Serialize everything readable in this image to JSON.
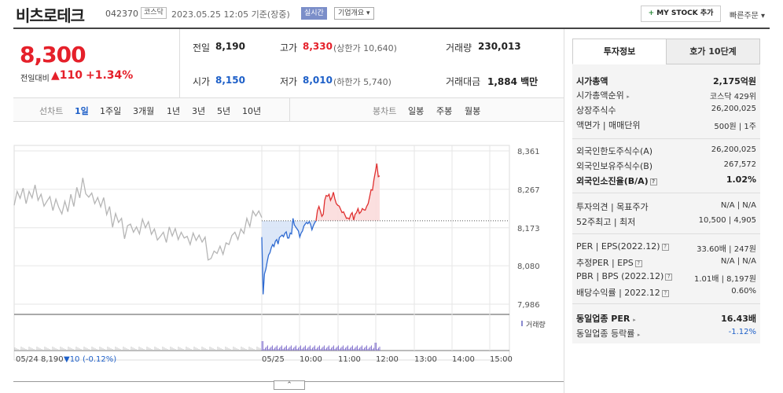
{
  "header": {
    "stock_name": "비츠로테크",
    "stock_code": "042370",
    "market": "코스닥",
    "datetime": "2023.05.25 12:05 기준(장중)",
    "realtime": "실시간",
    "company_overview": "기업개요 ▾",
    "mystock_plus": "+",
    "mystock_label": "MY STOCK 추가",
    "quick_order": "빠른주문 ▾"
  },
  "price": {
    "current": "8,300",
    "change_label": "전일대비",
    "change": "▲110",
    "change_pct": "+1.34%"
  },
  "quote": {
    "prev_close_label": "전일",
    "prev_close": "8,190",
    "high_label": "고가",
    "high": "8,330",
    "upper_limit": "(상한가 10,640)",
    "volume_label": "거래량",
    "volume": "230,013",
    "open_label": "시가",
    "open": "8,150",
    "low_label": "저가",
    "low": "8,010",
    "lower_limit": "(하한가 5,740)",
    "amount_label": "거래대금",
    "amount": "1,884 백만"
  },
  "chart_tabs": {
    "line_label": "선차트",
    "periods": [
      "1일",
      "1주일",
      "3개월",
      "1년",
      "3년",
      "5년",
      "10년"
    ],
    "active": "1일",
    "candle_label": "봉차트",
    "candles": [
      "일봉",
      "주봉",
      "월봉"
    ]
  },
  "chart_data": {
    "type": "line",
    "x_ticks": [
      "05/25",
      "10:00",
      "11:00",
      "12:00",
      "13:00",
      "14:00",
      "15:00"
    ],
    "y_ticks": [
      "8,361",
      "8,267",
      "8,173",
      "8,080",
      "7,986"
    ],
    "ylim": [
      7986,
      8361
    ],
    "reference_price": 8190,
    "series": [
      {
        "color": "#b5b5b5",
        "values": [
          8228,
          8262,
          8245,
          8270,
          8232,
          8262,
          8246,
          8278,
          8240,
          8255,
          8226,
          8238,
          8249,
          8215,
          8243,
          8222,
          8207,
          8238,
          8212,
          8255,
          8225,
          8272,
          8246,
          8295,
          8256,
          8248,
          8258,
          8232,
          8247,
          8224,
          8247,
          8205,
          8225,
          8174,
          8208,
          8186,
          8196,
          8146,
          8178,
          8182,
          8162,
          8175,
          8158,
          8194,
          8173,
          8188,
          8157,
          8170,
          8143,
          8152,
          8162,
          8137,
          8175,
          8153,
          8171,
          8144,
          8162,
          8148,
          8152,
          8132,
          8160,
          8142,
          8155,
          8138,
          8150,
          8094,
          8098,
          8116,
          8110,
          8128,
          8108,
          8136,
          8132,
          8154,
          8162,
          8144,
          8170,
          8159,
          8196,
          8176,
          8214,
          8202,
          8214,
          8198
        ]
      },
      {
        "color": "#2e6ad1",
        "fill": "#d8e4f7",
        "values": [
          8150,
          8010,
          8060,
          8072,
          8090,
          8106,
          8112,
          8124,
          8132,
          8127,
          8140,
          8144,
          8133,
          8149,
          8152,
          8155,
          8151,
          8159,
          8163,
          8148,
          8148,
          8160,
          8158,
          8196,
          8180,
          8175,
          8170,
          8165,
          8150,
          8160,
          8165,
          8177,
          8182,
          8186,
          8183,
          8188,
          8181,
          8168,
          8178,
          8185,
          8190
        ]
      },
      {
        "color": "#e03030",
        "fill": "#fbdcdc",
        "values": [
          8190,
          8215,
          8225,
          8214,
          8201,
          8206,
          8240,
          8252,
          8250,
          8255,
          8240,
          8248,
          8260,
          8244,
          8232,
          8228,
          8226,
          8218,
          8210,
          8212,
          8204,
          8196,
          8197,
          8194,
          8205,
          8210,
          8192,
          8206,
          8210,
          8220,
          8208,
          8212,
          8220,
          8217,
          8216,
          8225,
          8232,
          8248,
          8266,
          8265,
          8290,
          8310,
          8330,
          8298,
          8300
        ]
      }
    ],
    "volume_label": "거래량",
    "prev_day_label": "05/24",
    "prev_day_close": "8,190",
    "prev_day_change": "▼10",
    "prev_day_pct": "(-0.12%)"
  },
  "collapse_label": "⌃",
  "side": {
    "tab_invest": "투자정보",
    "tab_orderbook": "호가 10단계",
    "rows1": [
      {
        "k": "시가총액",
        "v": "2,175억원"
      },
      {
        "k": "시가총액순위",
        "v": "코스닥 429위"
      },
      {
        "k": "상장주식수",
        "v": "26,200,025"
      },
      {
        "k": "액면가 | 매매단위",
        "v": "500원 | 1주"
      }
    ],
    "rows2": [
      {
        "k": "외국인한도주식수(A)",
        "v": "26,200,025"
      },
      {
        "k": "외국인보유주식수(B)",
        "v": "267,572"
      },
      {
        "k": "외국인소진율(B/A)",
        "v": "1.02%"
      }
    ],
    "rows3": [
      {
        "k": "투자의견 | 목표주가",
        "v": "N/A | N/A"
      },
      {
        "k": "52주최고 | 최저",
        "v": "10,500 | 4,905"
      }
    ],
    "rows4": [
      {
        "k": "PER | EPS(2022.12)",
        "v": "33.60배 | 247원"
      },
      {
        "k": "추정PER | EPS",
        "v": "N/A | N/A"
      },
      {
        "k": "PBR | BPS (2022.12)",
        "v": "1.01배 | 8,197원"
      },
      {
        "k": "배당수익률 | 2022.12",
        "v": "0.60%"
      }
    ],
    "rows5": [
      {
        "k": "동일업종 PER",
        "v": "16.43배"
      },
      {
        "k": "동일업종 등락률",
        "v": "-1.12%"
      }
    ]
  }
}
